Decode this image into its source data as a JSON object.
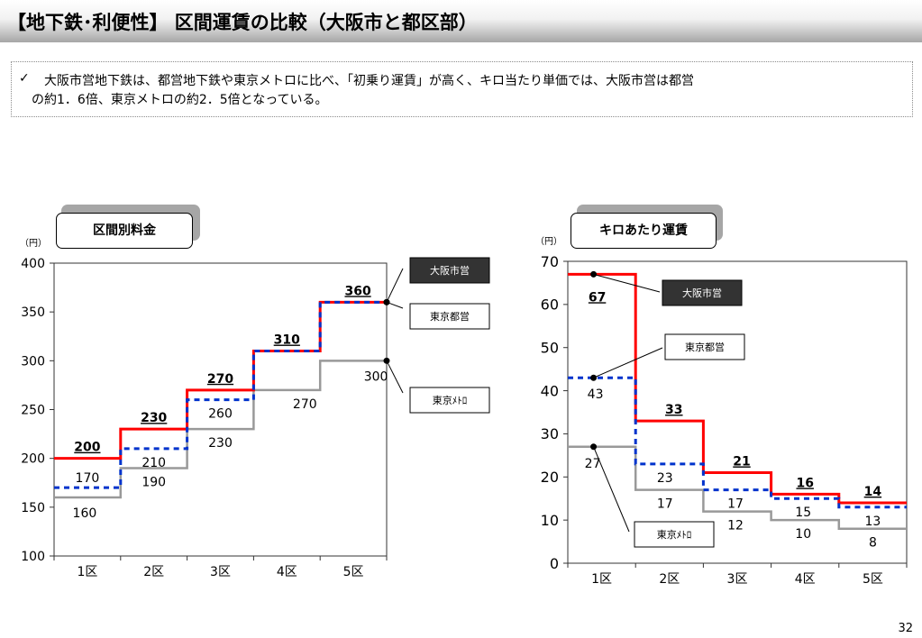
{
  "header": {
    "title": "【地下鉄･利便性】 区間運賃の比較（大阪市と都区部）"
  },
  "summary": {
    "line1": "大阪市営地下鉄は、都営地下鉄や東京メトロに比べ、「初乗り運賃」が高く、キロ当たり単価では、大阪市営は都営",
    "line2": "の約1．6倍、東京メトロの約2．5倍となっている。"
  },
  "colors": {
    "osaka": "#ff0000",
    "toei": "#0033cc",
    "metro": "#999999"
  },
  "chart_data": [
    {
      "type": "line",
      "step": true,
      "title": "区間別料金",
      "unit": "（円）",
      "categories": [
        "1区",
        "2区",
        "3区",
        "4区",
        "5区"
      ],
      "ylim": [
        100,
        400
      ],
      "yticks": [
        100,
        150,
        200,
        250,
        300,
        350,
        400
      ],
      "series": [
        {
          "name": "大阪市営",
          "values": [
            200,
            230,
            270,
            310,
            360
          ]
        },
        {
          "name": "東京都営",
          "values": [
            170,
            210,
            260,
            310,
            360
          ]
        },
        {
          "name": "東京ﾒﾄﾛ",
          "values": [
            160,
            190,
            230,
            270,
            300
          ]
        }
      ],
      "legend_placement": "right"
    },
    {
      "type": "line",
      "step": true,
      "title": "キロあたり運賃",
      "unit": "（円）",
      "categories": [
        "1区",
        "2区",
        "3区",
        "4区",
        "5区"
      ],
      "ylim": [
        0,
        70
      ],
      "yticks": [
        0,
        10,
        20,
        30,
        40,
        50,
        60,
        70
      ],
      "series": [
        {
          "name": "大阪市営",
          "values": [
            67,
            33,
            21,
            16,
            14
          ]
        },
        {
          "name": "東京都営",
          "values": [
            43,
            23,
            17,
            15,
            13
          ]
        },
        {
          "name": "東京ﾒﾄﾛ",
          "values": [
            27,
            17,
            12,
            10,
            8
          ]
        }
      ],
      "legend_placement": "inside"
    }
  ],
  "footer": {
    "page_number": "32"
  }
}
